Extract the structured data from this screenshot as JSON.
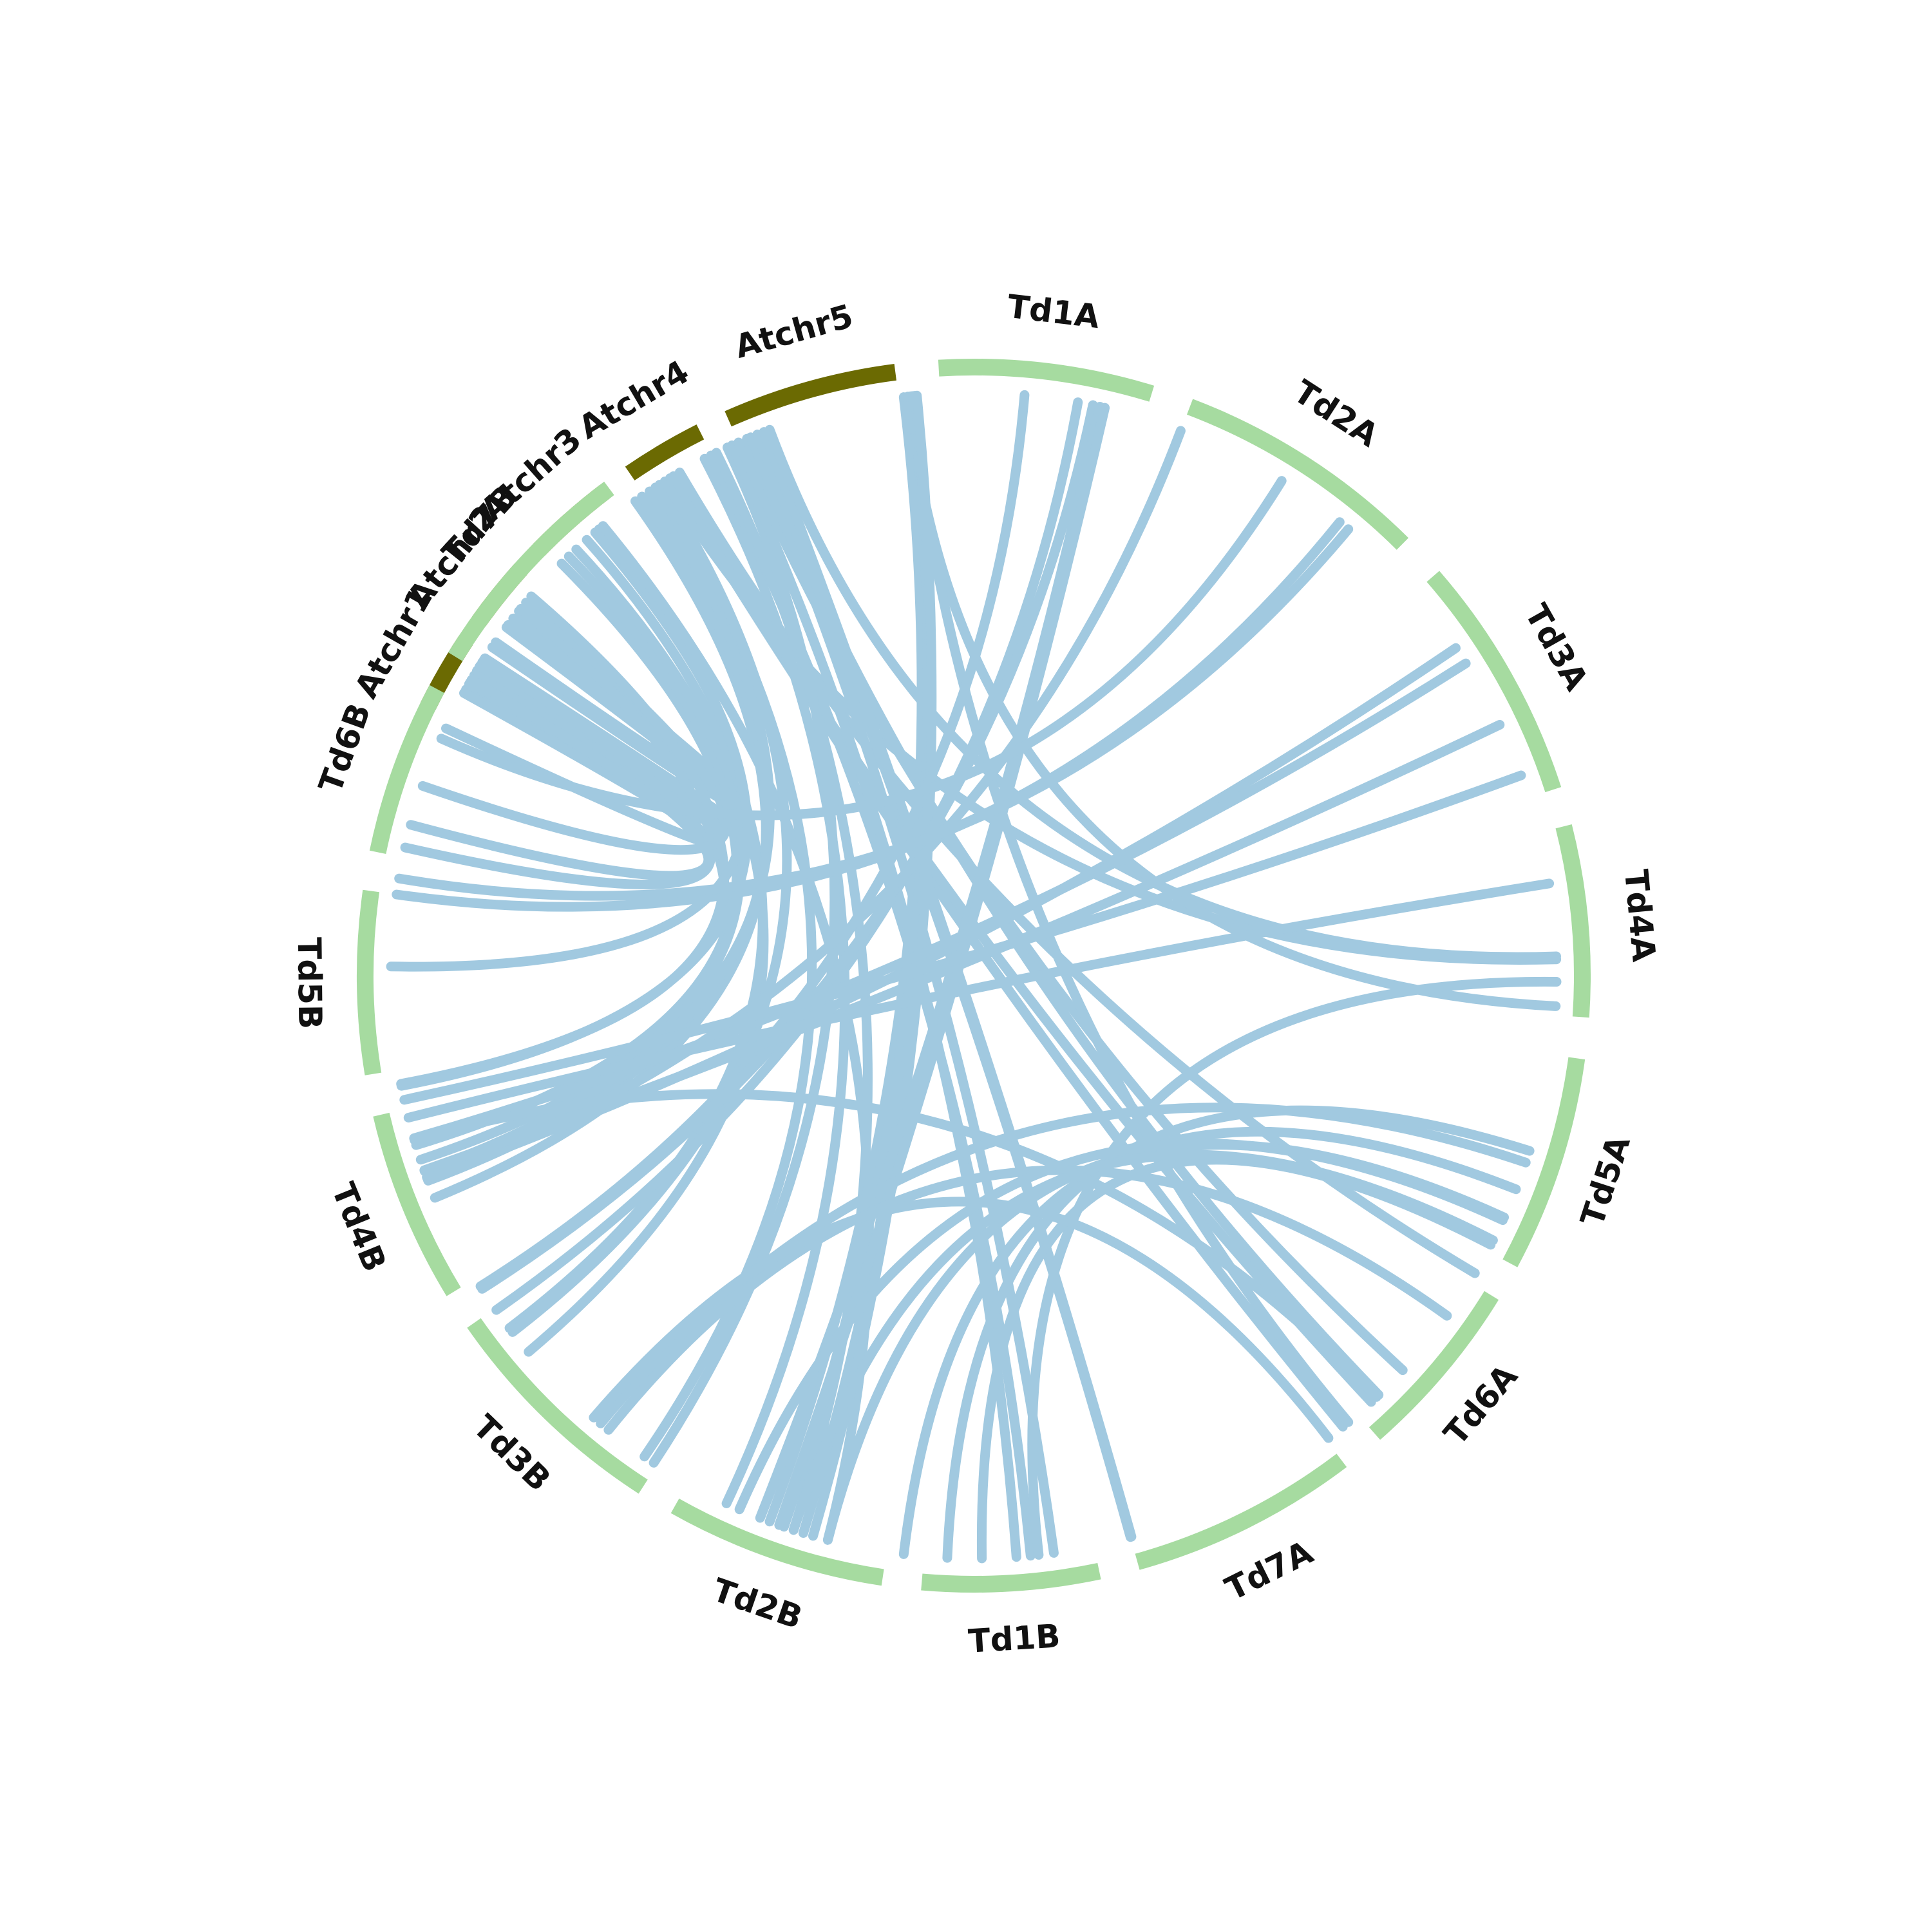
{
  "chart_data": {
    "type": "circos",
    "colors": {
      "arabidopsis": "#6b6a02",
      "durum": "#a6dba0",
      "link": "#a1c9e0",
      "label": "#111111"
    },
    "chromosomes": [
      {
        "name": "Atchr1",
        "group": "arabidopsis",
        "start_deg": -63.7,
        "end_deg": -56.6
      },
      {
        "name": "Atchr2",
        "group": "arabidopsis",
        "start_deg": -54.4,
        "end_deg": -48.1
      },
      {
        "name": "Atchr3",
        "group": "arabidopsis",
        "start_deg": -45.6,
        "end_deg": -37.3
      },
      {
        "name": "Atchr4",
        "group": "arabidopsis",
        "start_deg": -34.4,
        "end_deg": -26.7
      },
      {
        "name": "Atchr5",
        "group": "arabidopsis",
        "start_deg": -23.8,
        "end_deg": -7.4
      },
      {
        "name": "Td1A",
        "group": "durum",
        "start_deg": -3.3,
        "end_deg": 17.0
      },
      {
        "name": "Td2A",
        "group": "durum",
        "start_deg": 20.8,
        "end_deg": 44.8
      },
      {
        "name": "Td3A",
        "group": "durum",
        "start_deg": 49.0,
        "end_deg": 72.2
      },
      {
        "name": "Td4A",
        "group": "durum",
        "start_deg": 75.8,
        "end_deg": 93.9
      },
      {
        "name": "Td5A",
        "group": "durum",
        "start_deg": 97.8,
        "end_deg": 118.2
      },
      {
        "name": "Td6A",
        "group": "durum",
        "start_deg": 121.7,
        "end_deg": 138.8
      },
      {
        "name": "Td7A",
        "group": "durum",
        "start_deg": 142.8,
        "end_deg": 164.4
      },
      {
        "name": "Td1B",
        "group": "durum",
        "start_deg": 168.1,
        "end_deg": 184.9
      },
      {
        "name": "Td2B",
        "group": "durum",
        "start_deg": 188.6,
        "end_deg": 209.4
      },
      {
        "name": "Td3B",
        "group": "durum",
        "start_deg": 212.9,
        "end_deg": 235.2
      },
      {
        "name": "Td4B",
        "group": "durum",
        "start_deg": 238.7,
        "end_deg": 256.8
      },
      {
        "name": "Td5B",
        "group": "durum",
        "start_deg": 260.7,
        "end_deg": 278.0
      },
      {
        "name": "Td6B",
        "group": "durum",
        "start_deg": 281.7,
        "end_deg": 298.1
      },
      {
        "name": "Td7B",
        "group": "durum",
        "start_deg": 301.6,
        "end_deg": 323.2
      }
    ],
    "links": [
      [
        -60.6,
        302.0
      ],
      [
        -60.0,
        302.5
      ],
      [
        -59.0,
        300.2
      ],
      [
        -58.5,
        301.6
      ],
      [
        -57.9,
        303.0
      ],
      [
        -57.2,
        282.7
      ],
      [
        -61.0,
        295.1
      ],
      [
        -59.5,
        285.0
      ],
      [
        -53.3,
        304.3
      ],
      [
        -52.2,
        307.0
      ],
      [
        -51.3,
        304.9
      ],
      [
        -51.0,
        249.4
      ],
      [
        -50.2,
        289.0
      ],
      [
        -49.4,
        259.3
      ],
      [
        -45.0,
        253.1
      ],
      [
        -44.0,
        251.6
      ],
      [
        -43.0,
        229.8
      ],
      [
        -41.6,
        232.8
      ],
      [
        -40.5,
        270.9
      ],
      [
        -40.0,
        259.1
      ],
      [
        -39.5,
        194.5
      ],
      [
        -35.5,
        247.6
      ],
      [
        -34.7,
        249.8
      ],
      [
        -33.8,
        250.4
      ],
      [
        -33.1,
        214.4
      ],
      [
        -32.6,
        232.3
      ],
      [
        -32.0,
        88.4
      ],
      [
        -31.4,
        140.7
      ],
      [
        -31.0,
        137.0
      ],
      [
        -30.3,
        120.7
      ],
      [
        -27.5,
        205.1
      ],
      [
        -26.8,
        174.4
      ],
      [
        -26.2,
        198.0
      ],
      [
        -25.0,
        213.3
      ],
      [
        -24.5,
        175.8
      ],
      [
        -23.8,
        132.6
      ],
      [
        -22.9,
        136.0
      ],
      [
        -22.5,
        172.1
      ],
      [
        -21.8,
        164.4
      ],
      [
        -21.1,
        164.3
      ],
      [
        -20.5,
        88.1
      ],
      [
        -6.9,
        200.5
      ],
      [
        -6.5,
        93.0
      ],
      [
        -6.2,
        140.0
      ],
      [
        -6.0,
        199.0
      ],
      [
        -5.8,
        197.0
      ],
      [
        -5.6,
        196.0
      ],
      [
        5.0,
        237.8
      ],
      [
        10.3,
        235.0
      ],
      [
        11.8,
        237.5
      ],
      [
        11.8,
        237.8
      ],
      [
        12.5,
        201.5
      ],
      [
        13.0,
        199.5
      ],
      [
        20.8,
        249.5
      ],
      [
        31.9,
        294.0
      ],
      [
        38.9,
        278.0
      ],
      [
        40.0,
        279.6
      ],
      [
        55.8,
        249.7
      ],
      [
        57.6,
        253.8
      ],
      [
        64.5,
        250.5
      ],
      [
        69.9,
        257.7
      ],
      [
        80.9,
        255.9
      ],
      [
        90.6,
        173.6
      ],
      [
        114.5,
        194.5
      ],
      [
        111.5,
        186.9
      ],
      [
        108.7,
        219.8
      ],
      [
        117.5,
        179.2
      ],
      [
        107.5,
        182.6
      ],
      [
        125.7,
        218.8
      ],
      [
        142.5,
        220.7
      ],
      [
        114.8,
        203.7
      ],
      [
        117.0,
        198.0
      ],
      [
        136.3,
        253.6
      ]
    ]
  }
}
